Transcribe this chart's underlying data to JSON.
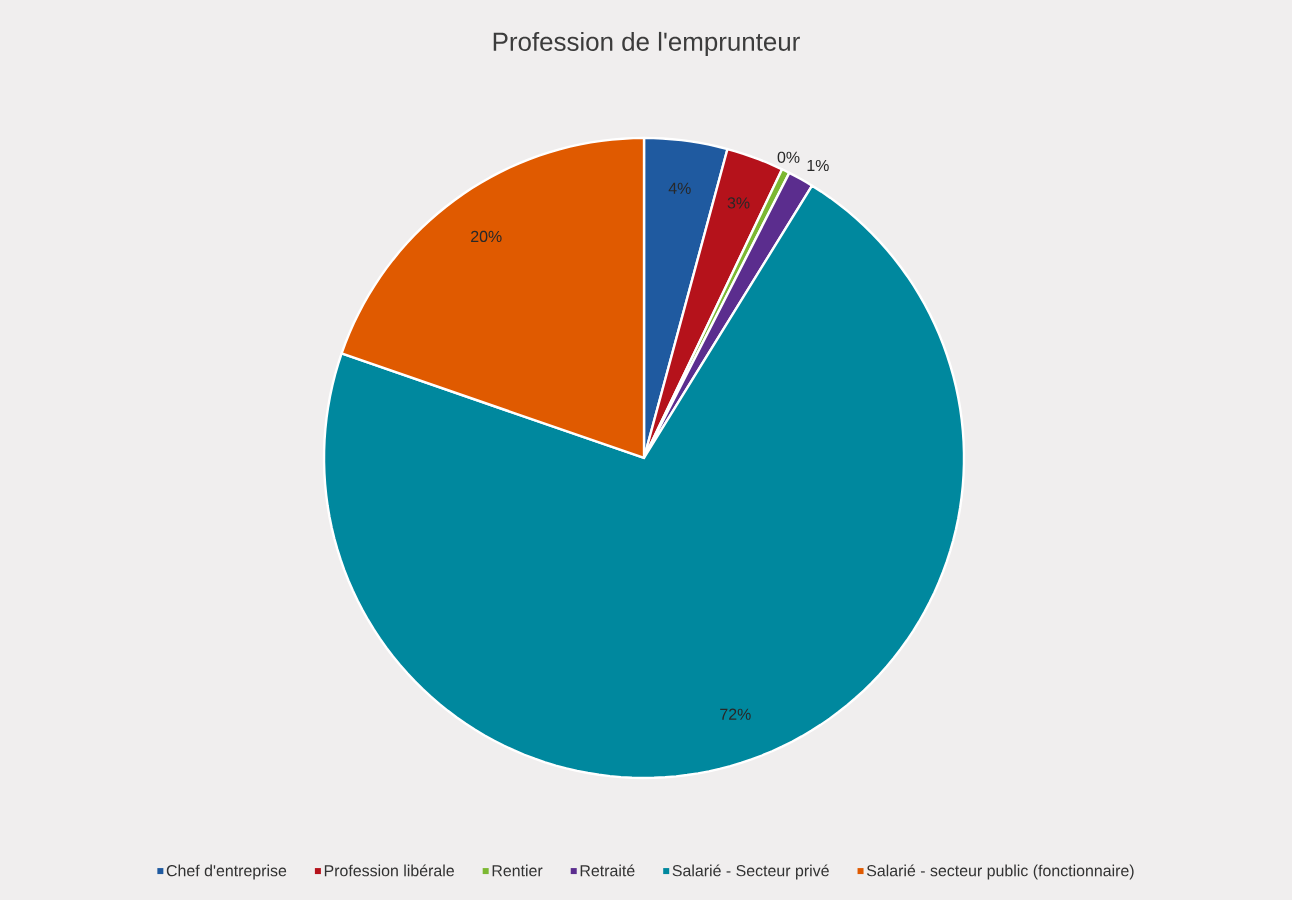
{
  "chart_data": {
    "type": "pie",
    "title": "Profession de l'emprunteur",
    "categories": [
      "Chef d'entreprise",
      "Profession libérale",
      "Rentier",
      "Retraité",
      "Salarié - Secteur privé",
      "Salarié - secteur public (fonctionnaire)"
    ],
    "values": [
      4.2,
      2.9,
      0.4,
      1.3,
      71.5,
      19.7
    ],
    "value_labels": [
      "4%",
      "3%",
      "0%",
      "1%",
      "72%",
      "20%"
    ],
    "colors": [
      "#1f5aa0",
      "#b5121b",
      "#7cb832",
      "#5b2d8e",
      "#00889e",
      "#e05a00"
    ],
    "legend": "bottom"
  }
}
